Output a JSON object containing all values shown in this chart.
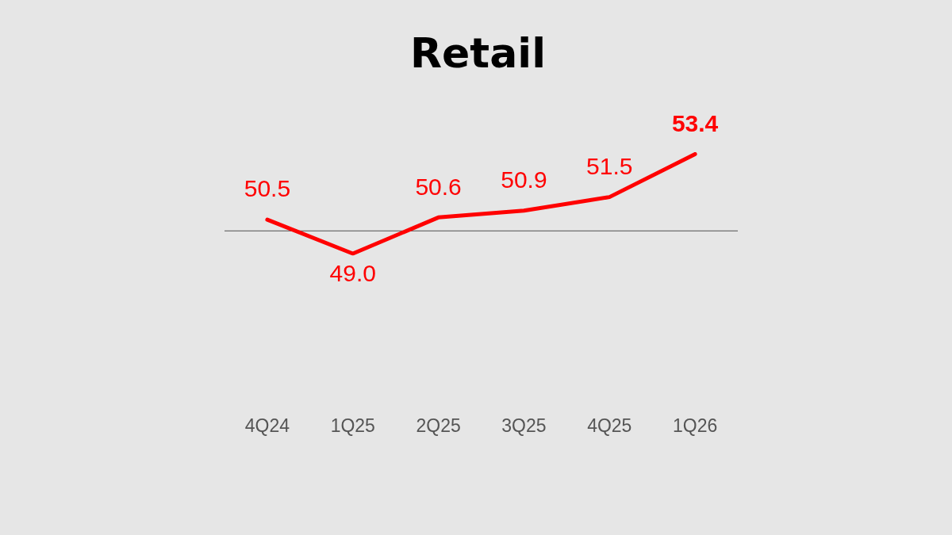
{
  "chart_data": {
    "type": "line",
    "title": "Retail",
    "categories": [
      "4Q24",
      "1Q25",
      "2Q25",
      "3Q25",
      "4Q25",
      "1Q26"
    ],
    "series": [
      {
        "color": "#ff0000",
        "values": [
          50.5,
          49.0,
          50.6,
          50.9,
          51.5,
          53.4
        ],
        "value_labels": [
          "50.5",
          "49.0",
          "50.6",
          "50.9",
          "51.5",
          "53.4"
        ]
      }
    ],
    "tick_labels": "x",
    "legend": false,
    "marker": "none",
    "line_style": "solid",
    "ref_lines": [
      {
        "axis": "y",
        "value": 50,
        "color": "#6e6e6e"
      }
    ]
  }
}
